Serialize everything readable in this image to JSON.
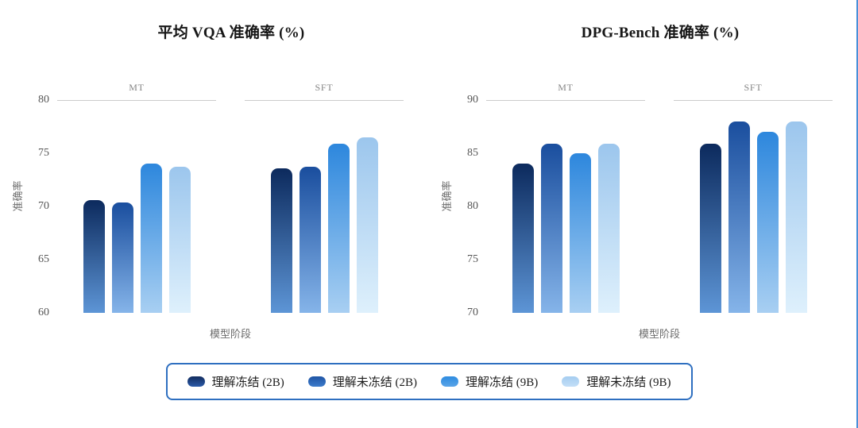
{
  "chart_data": [
    {
      "type": "bar",
      "title": "平均 VQA 准确率 (%)",
      "xlabel": "模型阶段",
      "ylabel": "准确率",
      "ylim": [
        60,
        80
      ],
      "yticks": [
        60,
        65,
        70,
        75,
        80
      ],
      "grid": false,
      "facets": [
        "MT",
        "SFT"
      ],
      "series": [
        {
          "name": "理解冻结 (2B)",
          "values": [
            70.6,
            73.6
          ]
        },
        {
          "name": "理解未冻结 (2B)",
          "values": [
            70.4,
            73.7
          ]
        },
        {
          "name": "理解冻结 (9B)",
          "values": [
            74.0,
            75.9
          ]
        },
        {
          "name": "理解未冻结 (9B)",
          "values": [
            73.7,
            76.5
          ]
        }
      ]
    },
    {
      "type": "bar",
      "title": "DPG-Bench 准确率 (%)",
      "xlabel": "模型阶段",
      "ylabel": "准确率",
      "ylim": [
        70,
        90
      ],
      "yticks": [
        70,
        75,
        80,
        85,
        90
      ],
      "grid": false,
      "facets": [
        "MT",
        "SFT"
      ],
      "series": [
        {
          "name": "理解冻结 (2B)",
          "values": [
            84.0,
            85.9
          ]
        },
        {
          "name": "理解未冻结 (2B)",
          "values": [
            85.9,
            88.0
          ]
        },
        {
          "name": "理解冻结 (9B)",
          "values": [
            85.0,
            87.0
          ]
        },
        {
          "name": "理解未冻结 (9B)",
          "values": [
            85.9,
            88.0
          ]
        }
      ]
    }
  ],
  "series_gradients": [
    {
      "top": "#0c2a5d",
      "bottom": "#5d95d6"
    },
    {
      "top": "#1a4e9e",
      "bottom": "#85b4e9"
    },
    {
      "top": "#2d87dd",
      "bottom": "#a8cff2"
    },
    {
      "top": "#9cc6ed",
      "bottom": "#def0fc"
    }
  ],
  "legend": {
    "border_color": "#2e6fc0",
    "items": [
      {
        "label": "理解冻结 (2B)",
        "color_top": "#122c5e",
        "color_bottom": "#2a5aa8"
      },
      {
        "label": "理解未冻结 (2B)",
        "color_top": "#1f55a5",
        "color_bottom": "#3d7ccb"
      },
      {
        "label": "理解冻结 (9B)",
        "color_top": "#2e8ce0",
        "color_bottom": "#5aa4e8"
      },
      {
        "label": "理解未冻结 (9B)",
        "color_top": "#a5cdf0",
        "color_bottom": "#c3def7"
      }
    ]
  },
  "accents": {
    "right_edge": "#4a8fd8"
  }
}
